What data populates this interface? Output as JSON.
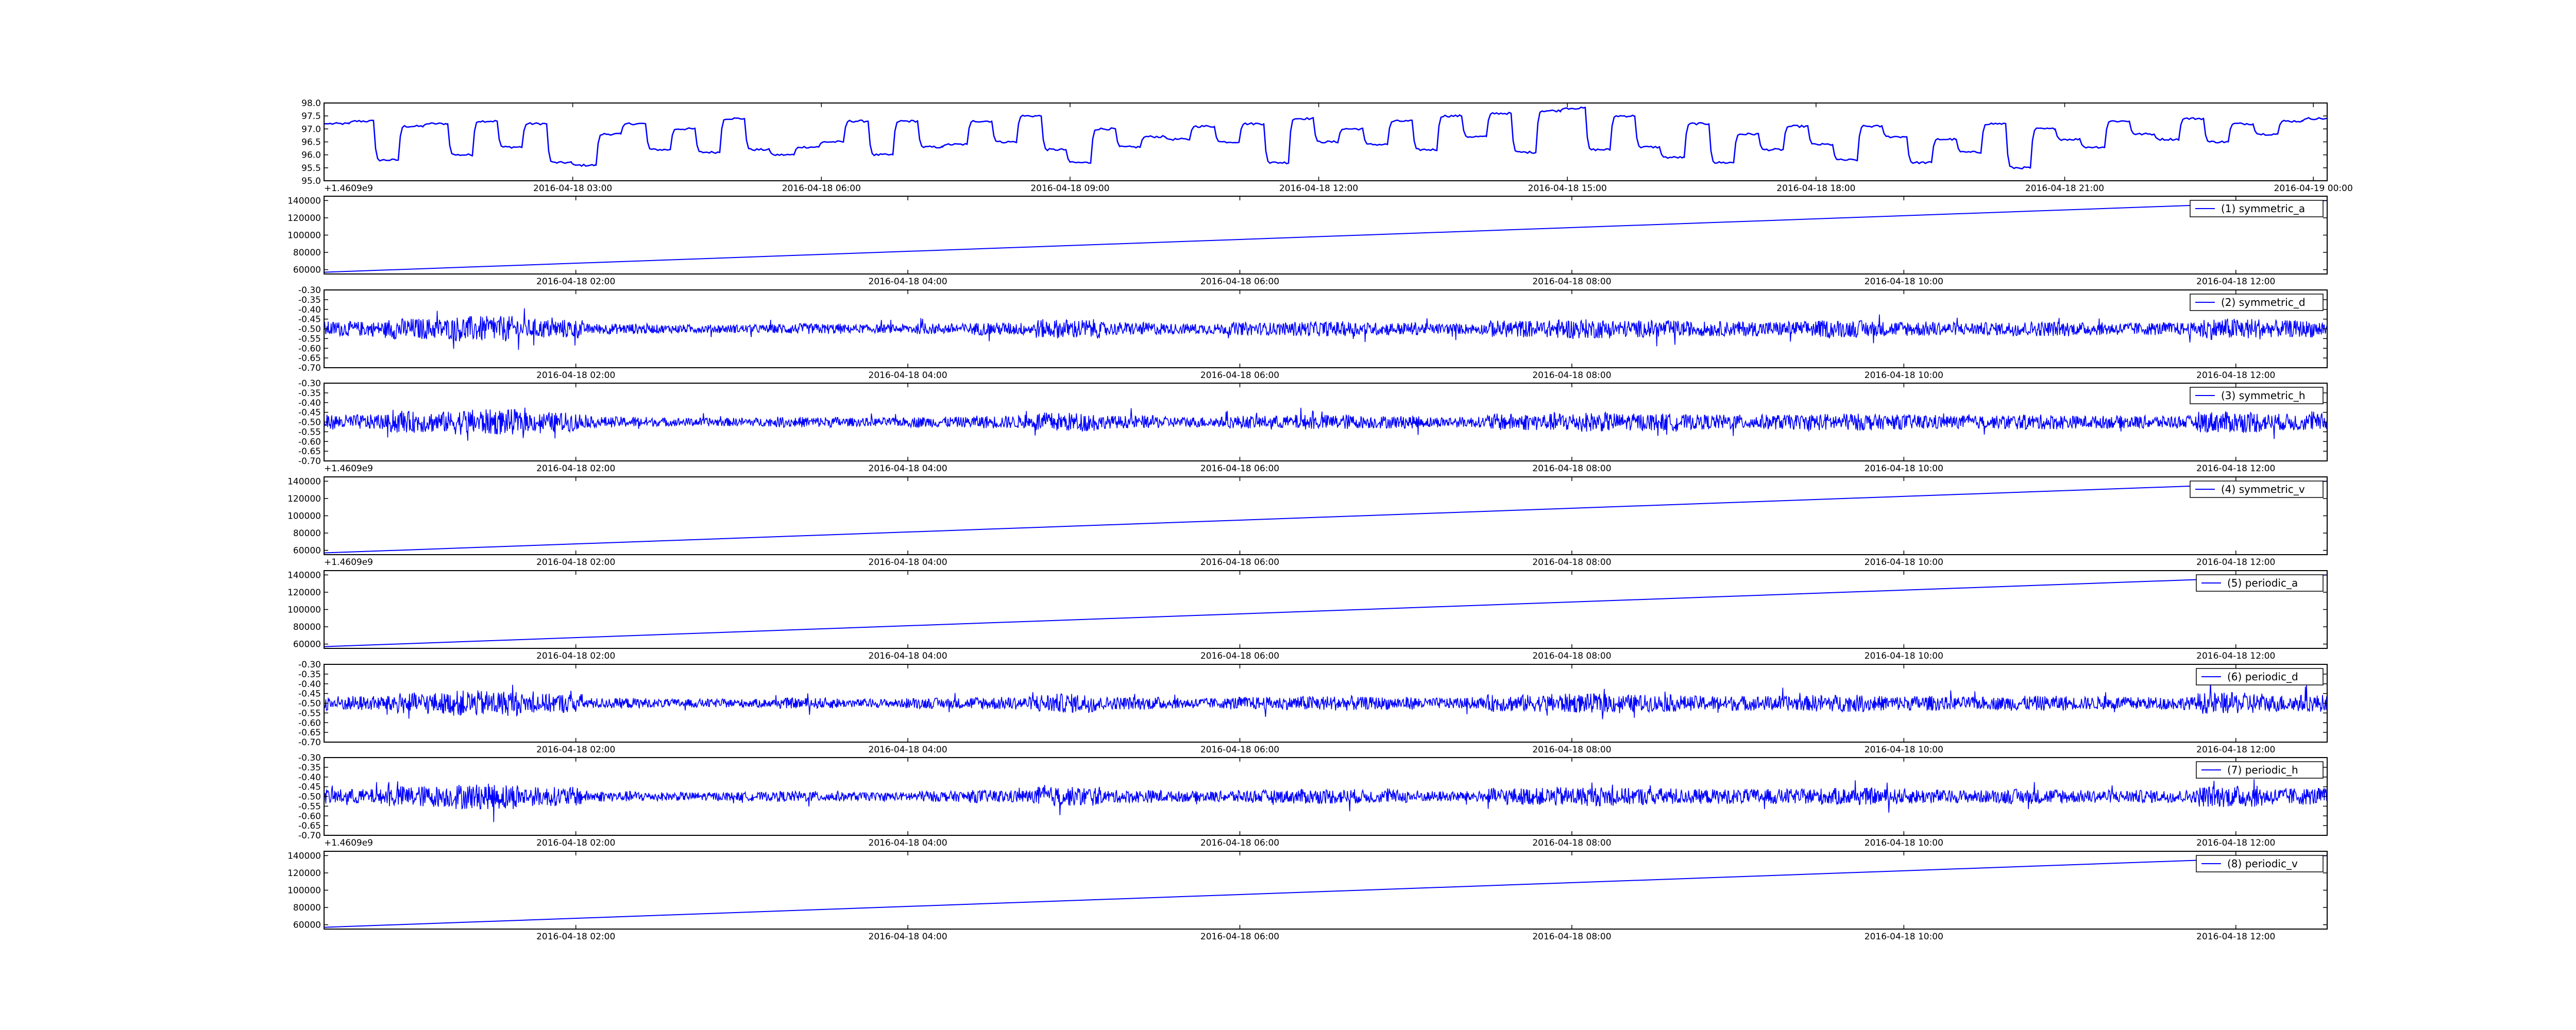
{
  "figure": {
    "description_free": true
  },
  "colors": {
    "series": "#0000ff",
    "axes": "#000000",
    "background": "#ffffff"
  },
  "chart_data": [
    {
      "type": "line",
      "series_label": "",
      "legend": "none",
      "grid": false,
      "ylim": [
        95.0,
        98.0
      ],
      "yticks": [
        "95.0",
        "95.5",
        "96.0",
        "96.5",
        "97.0",
        "97.5",
        "98.0"
      ],
      "xticks": [
        "2016-04-18 03:00",
        "2016-04-18 06:00",
        "2016-04-18 09:00",
        "2016-04-18 12:00",
        "2016-04-18 15:00",
        "2016-04-18 18:00",
        "2016-04-18 21:00",
        "2016-04-19 00:00"
      ],
      "y_offset_label": "+1.4609e9",
      "x_range": [
        "2016-04-18 00:00",
        "2016-04-19 00:10"
      ],
      "pattern": "step",
      "y_values_sample": [
        97.2,
        97.3,
        95.8,
        97.1,
        97.2,
        96.0,
        97.3,
        96.3,
        97.2,
        95.7,
        95.6,
        96.8,
        97.2,
        96.2,
        97.0,
        96.1,
        97.4,
        96.2,
        96.0,
        96.3,
        96.5,
        97.3,
        96.0,
        97.3,
        96.3,
        96.4,
        97.3,
        96.5,
        97.5,
        96.2,
        95.7,
        97.0,
        96.3,
        96.7,
        96.6,
        97.1,
        96.5,
        97.2,
        95.7,
        97.4,
        96.5,
        97.0,
        96.4,
        97.3,
        96.2,
        97.5,
        96.7,
        97.6,
        96.1,
        97.7,
        97.8,
        96.2,
        97.5,
        96.3,
        95.9,
        97.2,
        95.7,
        96.8,
        96.2,
        97.1,
        96.4,
        95.8,
        97.1,
        96.7,
        95.7,
        96.6,
        96.1,
        97.2,
        95.5,
        97.0,
        96.6,
        96.3,
        97.3,
        96.8,
        96.6,
        97.4,
        96.5,
        97.2,
        96.8,
        97.3,
        97.4
      ]
    },
    {
      "type": "line",
      "series_label": "(1) symmetric_a",
      "legend": "top-right",
      "grid": false,
      "ylim": [
        55000,
        145000
      ],
      "yticks": [
        "60000",
        "80000",
        "100000",
        "120000",
        "140000"
      ],
      "xticks": [
        "2016-04-18 02:00",
        "2016-04-18 04:00",
        "2016-04-18 06:00",
        "2016-04-18 08:00",
        "2016-04-18 10:00",
        "2016-04-18 12:00"
      ],
      "y_offset_label": "",
      "x_range": [
        "2016-04-18 00:29",
        "2016-04-18 12:33"
      ],
      "pattern": "linear",
      "x": [
        "2016-04-18 00:29",
        "2016-04-18 12:33"
      ],
      "y": [
        57000,
        140000
      ]
    },
    {
      "type": "line",
      "series_label": "(2) symmetric_d",
      "legend": "top-right",
      "grid": false,
      "ylim": [
        -0.7,
        -0.3
      ],
      "yticks": [
        "-0.70",
        "-0.65",
        "-0.60",
        "-0.55",
        "-0.50",
        "-0.45",
        "-0.40",
        "-0.35",
        "-0.30"
      ],
      "xticks": [
        "2016-04-18 02:00",
        "2016-04-18 04:00",
        "2016-04-18 06:00",
        "2016-04-18 08:00",
        "2016-04-18 10:00",
        "2016-04-18 12:00"
      ],
      "y_offset_label": "",
      "x_range": [
        "2016-04-18 00:29",
        "2016-04-18 12:33"
      ],
      "pattern": "noise",
      "center": -0.5,
      "amplitude_profile": [
        0.07,
        0.1,
        0.12,
        0.09,
        0.05,
        0.04,
        0.04,
        0.05,
        0.04,
        0.05,
        0.06,
        0.09,
        0.06,
        0.05,
        0.06,
        0.07,
        0.06,
        0.05,
        0.08,
        0.09,
        0.08,
        0.07,
        0.07,
        0.08,
        0.07,
        0.06,
        0.07,
        0.06,
        0.06,
        0.1,
        0.08
      ]
    },
    {
      "type": "line",
      "series_label": "(3) symmetric_h",
      "legend": "top-right",
      "grid": false,
      "ylim": [
        -0.7,
        -0.3
      ],
      "yticks": [
        "-0.70",
        "-0.65",
        "-0.60",
        "-0.55",
        "-0.50",
        "-0.45",
        "-0.40",
        "-0.35",
        "-0.30"
      ],
      "xticks": [
        "2016-04-18 02:00",
        "2016-04-18 04:00",
        "2016-04-18 06:00",
        "2016-04-18 08:00",
        "2016-04-18 10:00",
        "2016-04-18 12:00"
      ],
      "y_offset_label": "+1.4609e9",
      "x_range": [
        "2016-04-18 00:29",
        "2016-04-18 12:33"
      ],
      "pattern": "noise",
      "center": -0.5,
      "amplitude_profile": [
        0.07,
        0.1,
        0.12,
        0.09,
        0.05,
        0.04,
        0.04,
        0.05,
        0.04,
        0.05,
        0.06,
        0.09,
        0.06,
        0.05,
        0.06,
        0.07,
        0.06,
        0.05,
        0.08,
        0.09,
        0.08,
        0.07,
        0.07,
        0.08,
        0.07,
        0.06,
        0.07,
        0.06,
        0.06,
        0.1,
        0.08
      ]
    },
    {
      "type": "line",
      "series_label": "(4) symmetric_v",
      "legend": "top-right",
      "grid": false,
      "ylim": [
        55000,
        145000
      ],
      "yticks": [
        "60000",
        "80000",
        "100000",
        "120000",
        "140000"
      ],
      "xticks": [
        "2016-04-18 02:00",
        "2016-04-18 04:00",
        "2016-04-18 06:00",
        "2016-04-18 08:00",
        "2016-04-18 10:00",
        "2016-04-18 12:00"
      ],
      "y_offset_label": "+1.4609e9",
      "x_range": [
        "2016-04-18 00:29",
        "2016-04-18 12:33"
      ],
      "pattern": "linear",
      "x": [
        "2016-04-18 00:29",
        "2016-04-18 12:33"
      ],
      "y": [
        57000,
        140000
      ]
    },
    {
      "type": "line",
      "series_label": "(5) periodic_a",
      "legend": "top-right",
      "grid": false,
      "ylim": [
        55000,
        145000
      ],
      "yticks": [
        "60000",
        "80000",
        "100000",
        "120000",
        "140000"
      ],
      "xticks": [
        "2016-04-18 02:00",
        "2016-04-18 04:00",
        "2016-04-18 06:00",
        "2016-04-18 08:00",
        "2016-04-18 10:00",
        "2016-04-18 12:00"
      ],
      "y_offset_label": "",
      "x_range": [
        "2016-04-18 00:29",
        "2016-04-18 12:33"
      ],
      "pattern": "linear",
      "x": [
        "2016-04-18 00:29",
        "2016-04-18 12:33"
      ],
      "y": [
        57000,
        140000
      ]
    },
    {
      "type": "line",
      "series_label": "(6) periodic_d",
      "legend": "top-right",
      "grid": false,
      "ylim": [
        -0.7,
        -0.3
      ],
      "yticks": [
        "-0.70",
        "-0.65",
        "-0.60",
        "-0.55",
        "-0.50",
        "-0.45",
        "-0.40",
        "-0.35",
        "-0.30"
      ],
      "xticks": [
        "2016-04-18 02:00",
        "2016-04-18 04:00",
        "2016-04-18 06:00",
        "2016-04-18 08:00",
        "2016-04-18 10:00",
        "2016-04-18 12:00"
      ],
      "y_offset_label": "",
      "x_range": [
        "2016-04-18 00:29",
        "2016-04-18 12:33"
      ],
      "pattern": "noise",
      "center": -0.5,
      "amplitude_profile": [
        0.07,
        0.1,
        0.12,
        0.09,
        0.05,
        0.04,
        0.04,
        0.05,
        0.04,
        0.05,
        0.06,
        0.09,
        0.06,
        0.05,
        0.06,
        0.07,
        0.06,
        0.05,
        0.08,
        0.09,
        0.08,
        0.07,
        0.07,
        0.08,
        0.07,
        0.06,
        0.07,
        0.06,
        0.06,
        0.1,
        0.08
      ]
    },
    {
      "type": "line",
      "series_label": "(7) periodic_h",
      "legend": "top-right",
      "grid": false,
      "ylim": [
        -0.7,
        -0.3
      ],
      "yticks": [
        "-0.70",
        "-0.65",
        "-0.60",
        "-0.55",
        "-0.50",
        "-0.45",
        "-0.40",
        "-0.35",
        "-0.30"
      ],
      "xticks": [
        "2016-04-18 02:00",
        "2016-04-18 04:00",
        "2016-04-18 06:00",
        "2016-04-18 08:00",
        "2016-04-18 10:00",
        "2016-04-18 12:00"
      ],
      "y_offset_label": "+1.4609e9",
      "x_range": [
        "2016-04-18 00:29",
        "2016-04-18 12:33"
      ],
      "pattern": "noise",
      "center": -0.5,
      "amplitude_profile": [
        0.07,
        0.1,
        0.12,
        0.09,
        0.05,
        0.04,
        0.04,
        0.05,
        0.04,
        0.05,
        0.06,
        0.09,
        0.06,
        0.05,
        0.06,
        0.07,
        0.06,
        0.05,
        0.08,
        0.09,
        0.08,
        0.07,
        0.07,
        0.08,
        0.07,
        0.06,
        0.07,
        0.06,
        0.06,
        0.1,
        0.08
      ]
    },
    {
      "type": "line",
      "series_label": "(8) periodic_v",
      "legend": "top-right",
      "grid": false,
      "ylim": [
        55000,
        145000
      ],
      "yticks": [
        "60000",
        "80000",
        "100000",
        "120000",
        "140000"
      ],
      "xticks": [
        "2016-04-18 02:00",
        "2016-04-18 04:00",
        "2016-04-18 06:00",
        "2016-04-18 08:00",
        "2016-04-18 10:00",
        "2016-04-18 12:00"
      ],
      "y_offset_label": "",
      "x_range": [
        "2016-04-18 00:29",
        "2016-04-18 12:33"
      ],
      "pattern": "linear",
      "x": [
        "2016-04-18 00:29",
        "2016-04-18 12:33"
      ],
      "y": [
        57000,
        140000
      ]
    }
  ]
}
